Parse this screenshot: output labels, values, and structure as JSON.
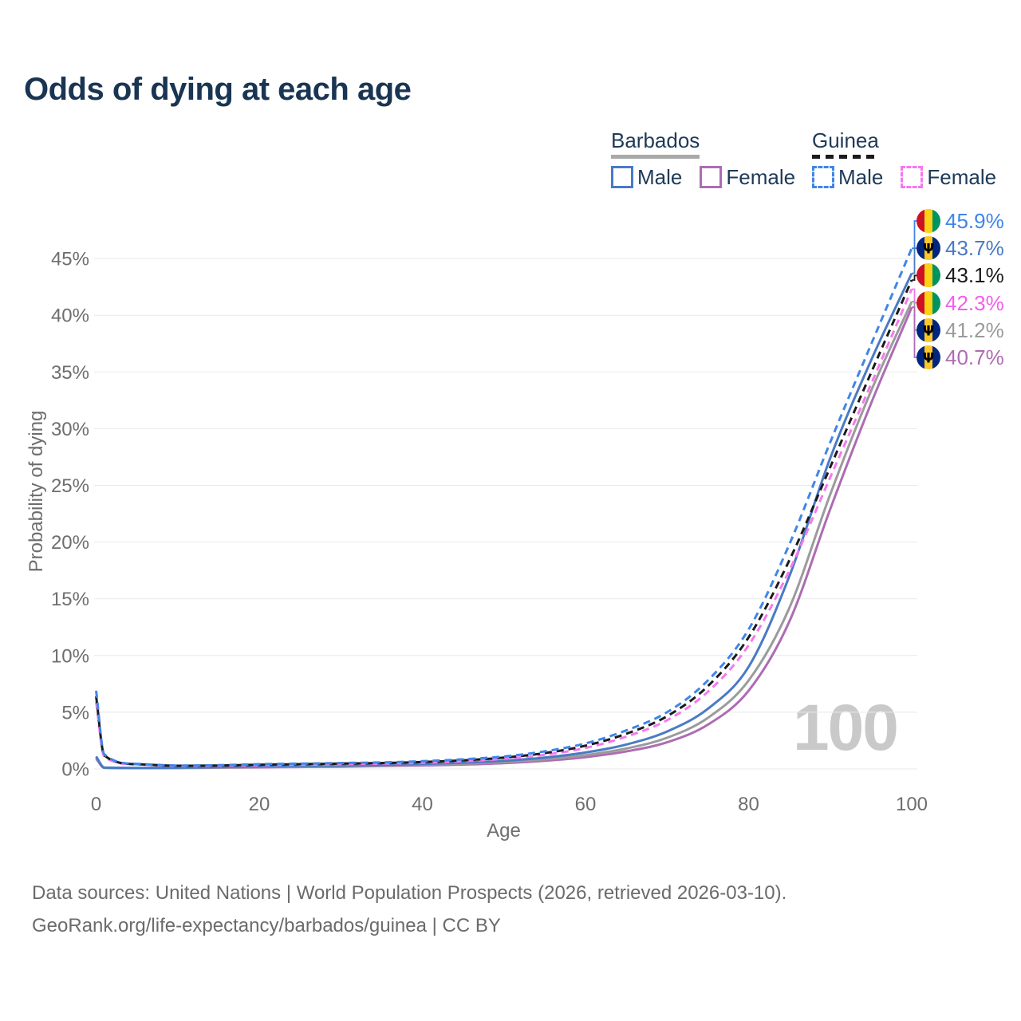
{
  "title": "Odds of dying at each age",
  "legend": {
    "groups": [
      {
        "label": "Barbados",
        "line_style": "solid",
        "underline_color": "#a9a9a9",
        "items": [
          {
            "label": "Male",
            "color": "#4a7ac4"
          },
          {
            "label": "Female",
            "color": "#ad6cb3"
          }
        ]
      },
      {
        "label": "Guinea",
        "line_style": "dashed",
        "underline_color": "#1b1b1b",
        "items": [
          {
            "label": "Male",
            "color": "#3f86e8"
          },
          {
            "label": "Female",
            "color": "#f678ee"
          }
        ]
      }
    ]
  },
  "chart_data": {
    "type": "line",
    "title": "Odds of dying at each age",
    "xlabel": "Age",
    "ylabel": "Probability of dying",
    "xlim": [
      0,
      100
    ],
    "ylim_pct": [
      0,
      47
    ],
    "x_tick_labels": [
      "0",
      "20",
      "40",
      "60",
      "80",
      "100"
    ],
    "x_tick_values": [
      0,
      20,
      40,
      60,
      80,
      100
    ],
    "y_tick_labels": [
      "0%",
      "5%",
      "10%",
      "15%",
      "20%",
      "25%",
      "30%",
      "35%",
      "40%",
      "45%"
    ],
    "y_tick_values_pct": [
      0,
      5,
      10,
      15,
      20,
      25,
      30,
      35,
      40,
      45
    ],
    "grid": "horizontal",
    "legend_position": "top-right",
    "ages": [
      0,
      1,
      5,
      10,
      15,
      20,
      25,
      30,
      35,
      40,
      45,
      50,
      55,
      60,
      65,
      70,
      75,
      80,
      85,
      90,
      95,
      100
    ],
    "series": [
      {
        "id": "barbados-female",
        "country": "Barbados",
        "sex": "Female",
        "color": "#ad6cb3",
        "dashed": false,
        "flag": "barbados",
        "end_label": "40.7%",
        "end_label_color": "#ad6cb3",
        "end_value_pct": 40.7,
        "values_pct": [
          0.9,
          0.1,
          0.07,
          0.08,
          0.11,
          0.14,
          0.17,
          0.2,
          0.25,
          0.31,
          0.39,
          0.51,
          0.72,
          1.04,
          1.55,
          2.35,
          3.9,
          6.9,
          13.0,
          22.9,
          32.2,
          40.7
        ]
      },
      {
        "id": "barbados-both",
        "country": "Barbados",
        "sex": "Both sexes",
        "color": "#9b9b9b",
        "dashed": false,
        "flag": "barbados",
        "end_label": "41.2%",
        "end_label_color": "#9b9b9b",
        "end_value_pct": 41.2,
        "values_pct": [
          1.0,
          0.11,
          0.08,
          0.09,
          0.13,
          0.17,
          0.21,
          0.25,
          0.3,
          0.37,
          0.46,
          0.61,
          0.85,
          1.22,
          1.8,
          2.75,
          4.5,
          7.8,
          14.2,
          24.2,
          33.3,
          41.2
        ]
      },
      {
        "id": "barbados-male",
        "country": "Barbados",
        "sex": "Male",
        "color": "#4a7ac4",
        "dashed": false,
        "flag": "barbados",
        "end_label": "43.7%",
        "end_label_color": "#4a7ac4",
        "end_value_pct": 43.7,
        "values_pct": [
          1.1,
          0.12,
          0.09,
          0.11,
          0.16,
          0.22,
          0.26,
          0.3,
          0.36,
          0.44,
          0.55,
          0.72,
          1.0,
          1.45,
          2.15,
          3.3,
          5.3,
          9.0,
          17.0,
          27.4,
          36.0,
          43.7
        ]
      },
      {
        "id": "guinea-female",
        "country": "Guinea",
        "sex": "Female",
        "color": "#f678ee",
        "dashed": true,
        "flag": "guinea",
        "end_label": "42.3%",
        "end_label_color": "#f25ef0",
        "end_value_pct": 42.3,
        "values_pct": [
          5.9,
          1.1,
          0.4,
          0.26,
          0.28,
          0.33,
          0.37,
          0.41,
          0.47,
          0.55,
          0.68,
          0.9,
          1.25,
          1.85,
          2.85,
          4.3,
          6.8,
          10.9,
          17.5,
          25.7,
          33.9,
          42.3
        ]
      },
      {
        "id": "guinea-both",
        "country": "Guinea",
        "sex": "Both sexes",
        "color": "#1b1b1b",
        "dashed": true,
        "flag": "guinea",
        "end_label": "43.1%",
        "end_label_color": "#1b1b1b",
        "end_value_pct": 43.1,
        "values_pct": [
          6.4,
          1.2,
          0.42,
          0.28,
          0.3,
          0.37,
          0.42,
          0.47,
          0.52,
          0.61,
          0.76,
          1.0,
          1.4,
          2.05,
          3.1,
          4.65,
          7.3,
          11.6,
          18.4,
          26.6,
          34.9,
          43.1
        ]
      },
      {
        "id": "guinea-male",
        "country": "Guinea",
        "sex": "Male",
        "color": "#3f86e8",
        "dashed": true,
        "flag": "guinea",
        "end_label": "45.9%",
        "end_label_color": "#3f86e8",
        "end_value_pct": 45.9,
        "values_pct": [
          6.9,
          1.3,
          0.45,
          0.3,
          0.33,
          0.42,
          0.47,
          0.52,
          0.58,
          0.68,
          0.85,
          1.1,
          1.55,
          2.25,
          3.4,
          5.0,
          7.8,
          12.3,
          19.8,
          28.8,
          37.4,
          45.9
        ]
      }
    ],
    "flag_colors": {
      "guinea": [
        "#ce1126",
        "#fcd116",
        "#009460"
      ],
      "barbados": [
        "#00267f",
        "#ffc726",
        "#00267f"
      ]
    }
  },
  "watermark": "100",
  "footer": {
    "line1": "Data sources: United Nations | World Population Prospects (2026, retrieved 2026-03-10).",
    "line2": "GeoRank.org/life-expectancy/barbados/guinea | CC BY"
  }
}
